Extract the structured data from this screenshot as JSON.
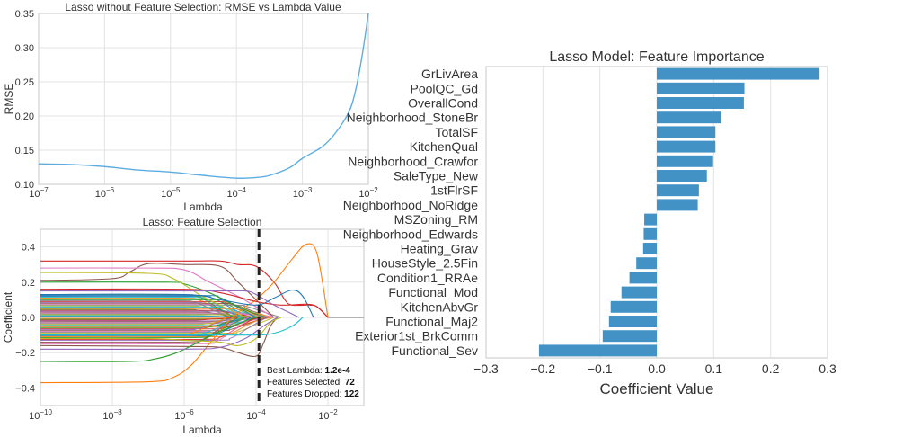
{
  "chart_data": [
    {
      "type": "line",
      "title": "Lasso without Feature Selection: RMSE vs Lambda Value",
      "xlabel": "Lambda",
      "ylabel": "RMSE",
      "xscale": "log",
      "xlim_exp": [
        -7,
        -2
      ],
      "ylim": [
        0.1,
        0.35
      ],
      "xticks": [
        {
          "base": "10",
          "exp": "−7",
          "v": -7
        },
        {
          "base": "10",
          "exp": "−6",
          "v": -6
        },
        {
          "base": "10",
          "exp": "−5",
          "v": -5
        },
        {
          "base": "10",
          "exp": "−4",
          "v": -4
        },
        {
          "base": "10",
          "exp": "−3",
          "v": -3
        },
        {
          "base": "10",
          "exp": "−2",
          "v": -2
        }
      ],
      "yticks": [
        "0.10",
        "0.15",
        "0.20",
        "0.25",
        "0.30",
        "0.35"
      ],
      "grid": true,
      "color": "#5dade2",
      "log10_lambda": [
        -7,
        -6.5,
        -6,
        -5.5,
        -5,
        -4.5,
        -4,
        -3.7,
        -3.5,
        -3.2,
        -3,
        -2.7,
        -2.5,
        -2.3,
        -2.2,
        -2.1,
        -2
      ],
      "rmse": [
        0.13,
        0.129,
        0.126,
        0.121,
        0.118,
        0.113,
        0.109,
        0.11,
        0.113,
        0.124,
        0.138,
        0.155,
        0.175,
        0.205,
        0.235,
        0.285,
        0.35
      ]
    },
    {
      "type": "line",
      "title": "Lasso: Feature Selection",
      "xlabel": "Lambda",
      "ylabel": "Coefficient",
      "xscale": "log",
      "xlim_exp": [
        -10,
        -1
      ],
      "ylim": [
        -0.5,
        0.5
      ],
      "xticks": [
        {
          "base": "10",
          "exp": "−10",
          "v": -10
        },
        {
          "base": "10",
          "exp": "−8",
          "v": -8
        },
        {
          "base": "10",
          "exp": "−6",
          "v": -6
        },
        {
          "base": "10",
          "exp": "−4",
          "v": -4
        },
        {
          "base": "10",
          "exp": "−2",
          "v": -2
        }
      ],
      "yticks": [
        {
          "label": "0.4",
          "v": 0.4
        },
        {
          "label": "0.2",
          "v": 0.2
        },
        {
          "label": "0.0",
          "v": 0.0
        },
        {
          "label": "−0.2",
          "v": -0.2
        },
        {
          "label": "−0.4",
          "v": -0.4
        }
      ],
      "grid": true,
      "best_lambda_log10": -3.92,
      "annotation": [
        {
          "label": "Best Lambda: ",
          "value": "1.2e-4"
        },
        {
          "label": "Features Selected: ",
          "value": "72"
        },
        {
          "label": "Features Dropped: ",
          "value": "122"
        }
      ],
      "series": [
        {
          "color": "#d62728",
          "points": [
            [
              -10,
              0.32
            ],
            [
              -6,
              0.32
            ],
            [
              -5,
              0.32
            ],
            [
              -4.5,
              0.3
            ],
            [
              -4,
              0.29
            ],
            [
              -3.5,
              0.2
            ],
            [
              -3.2,
              0.1
            ],
            [
              -3,
              0.07
            ],
            [
              -2.5,
              0.07
            ],
            [
              -2.3,
              0.06
            ],
            [
              -2,
              0
            ]
          ]
        },
        {
          "color": "#ff7f0e",
          "points": [
            [
              -10,
              -0.37
            ],
            [
              -7,
              -0.365
            ],
            [
              -6.3,
              -0.34
            ],
            [
              -5.8,
              -0.27
            ],
            [
              -5.3,
              -0.15
            ],
            [
              -4.8,
              -0.03
            ],
            [
              -4.3,
              0.06
            ],
            [
              -4,
              0.1
            ],
            [
              -3.5,
              0.2
            ],
            [
              -3,
              0.33
            ],
            [
              -2.6,
              0.415
            ],
            [
              -2.3,
              0.36
            ],
            [
              -2,
              0
            ]
          ]
        },
        {
          "color": "#8c564b",
          "points": [
            [
              -10,
              0.21
            ],
            [
              -8,
              0.22
            ],
            [
              -7.5,
              0.26
            ],
            [
              -7,
              0.305
            ],
            [
              -6,
              0.3
            ],
            [
              -5,
              0.29
            ],
            [
              -4.5,
              0.2
            ],
            [
              -4,
              0.1
            ],
            [
              -3.5,
              0
            ]
          ]
        },
        {
          "color": "#e377c2",
          "points": [
            [
              -10,
              0.28
            ],
            [
              -7,
              0.28
            ],
            [
              -6,
              0.27
            ],
            [
              -5.3,
              0.2
            ],
            [
              -4.5,
              0.12
            ],
            [
              -4,
              0.06
            ],
            [
              -3.5,
              0
            ]
          ]
        },
        {
          "color": "#2ca02c",
          "points": [
            [
              -10,
              0.2
            ],
            [
              -6.5,
              0.2
            ],
            [
              -6,
              0.19
            ],
            [
              -5.3,
              0.14
            ],
            [
              -4.7,
              0.08
            ],
            [
              -4,
              0.02
            ],
            [
              -3.7,
              0
            ]
          ]
        },
        {
          "color": "#bcbd22",
          "points": [
            [
              -10,
              0.255
            ],
            [
              -7,
              0.25
            ],
            [
              -6.3,
              0.22
            ],
            [
              -5.5,
              0.12
            ],
            [
              -4.8,
              0.05
            ],
            [
              -4.3,
              0
            ]
          ]
        },
        {
          "color": "#1f77b4",
          "points": [
            [
              -10,
              0.13
            ],
            [
              -6,
              0.13
            ],
            [
              -5,
              0.1
            ],
            [
              -4,
              0.07
            ],
            [
              -3.5,
              0.11
            ],
            [
              -3,
              0.155
            ],
            [
              -2.7,
              0.12
            ],
            [
              -2.4,
              0
            ]
          ]
        },
        {
          "color": "#8c564b",
          "points": [
            [
              -10,
              -0.16
            ],
            [
              -6,
              -0.165
            ],
            [
              -5,
              -0.17
            ],
            [
              -4.5,
              -0.2
            ],
            [
              -4,
              -0.22
            ],
            [
              -3.8,
              -0.15
            ],
            [
              -3.6,
              -0.05
            ],
            [
              -3.4,
              0
            ]
          ]
        },
        {
          "color": "#2ca02c",
          "points": [
            [
              -10,
              -0.25
            ],
            [
              -7.5,
              -0.25
            ],
            [
              -6.8,
              -0.235
            ],
            [
              -6.2,
              -0.2
            ],
            [
              -5.6,
              -0.14
            ],
            [
              -5,
              -0.08
            ],
            [
              -4.3,
              -0.02
            ],
            [
              -4,
              0
            ]
          ]
        },
        {
          "color": "#9467bd",
          "points": [
            [
              -10,
              -0.18
            ],
            [
              -6,
              -0.18
            ],
            [
              -5,
              -0.17
            ],
            [
              -4.3,
              -0.12
            ],
            [
              -3.8,
              -0.05
            ],
            [
              -3.4,
              0
            ]
          ]
        },
        {
          "color": "#17becf",
          "points": [
            [
              -10,
              -0.1
            ],
            [
              -6,
              -0.1
            ],
            [
              -5,
              -0.1
            ],
            [
              -4,
              -0.1
            ],
            [
              -3.5,
              -0.09
            ],
            [
              -3,
              -0.05
            ],
            [
              -2.7,
              0
            ]
          ]
        },
        {
          "color": "#d62728",
          "points": [
            [
              -10,
              0.16
            ],
            [
              -6,
              0.16
            ],
            [
              -5,
              0.14
            ],
            [
              -4,
              0.09
            ],
            [
              -3.3,
              0.07
            ],
            [
              -2.6,
              0.075
            ],
            [
              -2.3,
              0.06
            ],
            [
              -2,
              0
            ]
          ]
        },
        {
          "color": "#bcbd22",
          "points": [
            [
              -10,
              -0.12
            ],
            [
              -7,
              -0.12
            ],
            [
              -6,
              -0.13
            ],
            [
              -5,
              -0.14
            ],
            [
              -4.5,
              -0.16
            ],
            [
              -4,
              -0.12
            ],
            [
              -3.6,
              -0.03
            ],
            [
              -3.3,
              0
            ]
          ]
        },
        {
          "color": "#9467bd",
          "points": [
            [
              -10,
              0.15
            ],
            [
              -6,
              0.15
            ],
            [
              -5,
              0.15
            ],
            [
              -4.3,
              0.15
            ],
            [
              -4,
              0.13
            ],
            [
              -3.5,
              0.07
            ],
            [
              -3,
              0.02
            ],
            [
              -2.8,
              0
            ]
          ]
        }
      ],
      "bulk_palette": [
        "#1f77b4",
        "#ff7f0e",
        "#2ca02c",
        "#d62728",
        "#9467bd",
        "#8c564b",
        "#e377c2",
        "#7f7f7f",
        "#bcbd22",
        "#17becf"
      ],
      "bulk_paths": [
        [
          0.12,
          -4.2
        ],
        [
          0.11,
          -4.6
        ],
        [
          0.1,
          -4.0
        ],
        [
          0.09,
          -3.8
        ],
        [
          0.085,
          -4.4
        ],
        [
          0.08,
          -3.6
        ],
        [
          0.075,
          -4.1
        ],
        [
          0.07,
          -3.3
        ],
        [
          0.065,
          -4.5
        ],
        [
          0.06,
          -3.9
        ],
        [
          0.055,
          -4.2
        ],
        [
          0.05,
          -3.5
        ],
        [
          0.045,
          -4.6
        ],
        [
          0.04,
          -4.0
        ],
        [
          0.035,
          -3.7
        ],
        [
          0.03,
          -4.3
        ],
        [
          0.025,
          -3.4
        ],
        [
          0.02,
          -4.0
        ],
        [
          0.015,
          -3.8
        ],
        [
          0.01,
          -4.4
        ],
        [
          0.005,
          -3.6
        ],
        [
          -0.005,
          -4.1
        ],
        [
          -0.01,
          -3.9
        ],
        [
          -0.015,
          -4.5
        ],
        [
          -0.02,
          -3.7
        ],
        [
          -0.025,
          -4.2
        ],
        [
          -0.03,
          -3.5
        ],
        [
          -0.035,
          -4.0
        ],
        [
          -0.04,
          -4.4
        ],
        [
          -0.045,
          -3.8
        ],
        [
          -0.05,
          -4.1
        ],
        [
          -0.055,
          -3.6
        ],
        [
          -0.06,
          -4.3
        ],
        [
          -0.065,
          -3.9
        ],
        [
          -0.07,
          -4.6
        ],
        [
          -0.075,
          -3.7
        ],
        [
          -0.08,
          -4.2
        ],
        [
          -0.085,
          -4.0
        ],
        [
          -0.09,
          -3.5
        ],
        [
          -0.095,
          -4.4
        ],
        [
          -0.105,
          -4.1
        ],
        [
          -0.11,
          -3.8
        ],
        [
          -0.115,
          -4.3
        ],
        [
          -0.125,
          -4.0
        ],
        [
          -0.13,
          -3.7
        ],
        [
          -0.14,
          -4.5
        ],
        [
          -0.15,
          -4.1
        ],
        [
          0.095,
          -4.7
        ],
        [
          0.105,
          -3.9
        ],
        [
          0.115,
          -4.4
        ],
        [
          0.125,
          -4.0
        ],
        [
          -0.1,
          -4.8
        ],
        [
          0.13,
          -4.6
        ]
      ]
    },
    {
      "type": "bar",
      "orientation": "horizontal",
      "title": "Lasso Model: Feature Importance",
      "xlabel": "Coefficient Value",
      "ylabel": "",
      "xlim": [
        -0.3,
        0.3
      ],
      "xticks": [
        "−0.3",
        "−0.2",
        "−0.1",
        "0.0",
        "0.1",
        "0.2",
        "0.3"
      ],
      "grid": true,
      "color": "#4292c6",
      "categories": [
        "GrLivArea",
        "PoolQC_Gd",
        "OverallCond",
        "Neighborhood_StoneBr",
        "TotalSF",
        "KitchenQual",
        "Neighborhood_Crawfor",
        "SaleType_New",
        "1stFlrSF",
        "Neighborhood_NoRidge",
        "MSZoning_RM",
        "Neighborhood_Edwards",
        "Heating_Grav",
        "HouseStyle_2.5Fin",
        "Condition1_RRAe",
        "Functional_Mod",
        "KitchenAbvGr",
        "Functional_Maj2",
        "Exterior1st_BrkComm",
        "Functional_Sev"
      ],
      "values": [
        0.286,
        0.154,
        0.153,
        0.113,
        0.103,
        0.103,
        0.099,
        0.088,
        0.074,
        0.072,
        -0.022,
        -0.023,
        -0.024,
        -0.036,
        -0.048,
        -0.062,
        -0.081,
        -0.084,
        -0.095,
        -0.207
      ]
    }
  ]
}
